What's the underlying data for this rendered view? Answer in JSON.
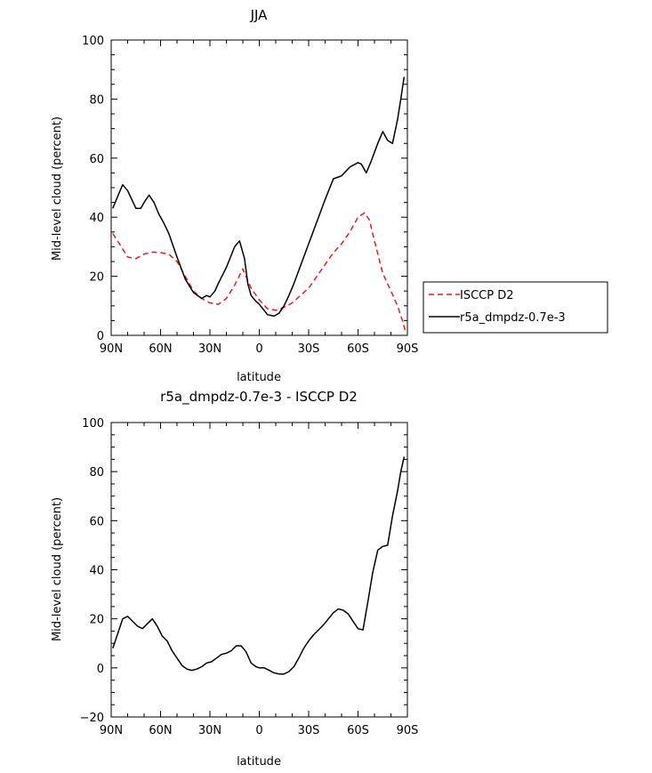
{
  "chart_data": [
    {
      "type": "line",
      "title": "JJA",
      "xlabel": "latitude",
      "ylabel": "Mid-level cloud (percent)",
      "xlim": [
        90,
        -90
      ],
      "ylim": [
        0,
        100
      ],
      "xtick_values": [
        90,
        60,
        30,
        0,
        -30,
        -60,
        -90
      ],
      "xtick_labels": [
        "90N",
        "60N",
        "30N",
        "0",
        "30S",
        "60S",
        "90S"
      ],
      "ytick_values": [
        0,
        20,
        40,
        60,
        80,
        100
      ],
      "ytick_labels": [
        "0",
        "20",
        "40",
        "60",
        "80",
        "100"
      ],
      "legend_position": "right",
      "series": [
        {
          "name": "ISCCP D2",
          "color": "#e8191c",
          "dashed": true,
          "x": [
            89,
            85,
            80,
            75,
            70,
            65,
            60,
            55,
            50,
            45,
            40,
            35,
            30,
            25,
            20,
            15,
            10,
            5,
            0,
            -5,
            -10,
            -15,
            -20,
            -25,
            -30,
            -35,
            -40,
            -45,
            -50,
            -55,
            -60,
            -64,
            -67,
            -70,
            -75,
            -80,
            -84,
            -87,
            -89
          ],
          "values": [
            34.5,
            31,
            26.5,
            26,
            27.5,
            28.2,
            28,
            27.5,
            25,
            20,
            15,
            12.5,
            11,
            10.5,
            12.5,
            17,
            22.5,
            16,
            12,
            9,
            8.5,
            9.5,
            11,
            13.5,
            16,
            20,
            24,
            28,
            31,
            35,
            40,
            41.5,
            39,
            32,
            21,
            15,
            10,
            5,
            1
          ]
        },
        {
          "name": "r5a_dmpdz-0.7e-3",
          "color": "#000000",
          "dashed": false,
          "x": [
            89,
            85,
            83,
            80,
            75,
            72,
            70,
            67,
            64,
            61,
            58,
            55,
            50,
            45,
            40,
            35,
            32,
            30,
            27,
            25,
            20,
            15,
            12,
            9,
            7,
            5,
            2,
            0,
            -5,
            -9,
            -12,
            -15,
            -18,
            -21,
            -24,
            -28,
            -32,
            -36,
            -40,
            -45,
            -50,
            -55,
            -60,
            -62,
            -65,
            -68,
            -70,
            -72,
            -75,
            -78,
            -81,
            -84,
            -86,
            -88
          ],
          "values": [
            43,
            48.5,
            51,
            49,
            43,
            43,
            45,
            47.5,
            45,
            41,
            38,
            34.5,
            26.5,
            19,
            14.5,
            12.5,
            13.5,
            13,
            15,
            17.5,
            23,
            30,
            32,
            26,
            17.5,
            13.5,
            11.5,
            10.5,
            7,
            6.5,
            7.5,
            10,
            13.5,
            17.5,
            22,
            28,
            34,
            40,
            46,
            53,
            54,
            57,
            58.5,
            58,
            55,
            59,
            62,
            65,
            69,
            66,
            65,
            73,
            80,
            87.5
          ]
        }
      ]
    },
    {
      "type": "line",
      "title": "r5a_dmpdz-0.7e-3 - ISCCP D2",
      "xlabel": "latitude",
      "ylabel": "Mid-level cloud (percent)",
      "xlim": [
        90,
        -90
      ],
      "ylim": [
        -20,
        100
      ],
      "xtick_values": [
        90,
        60,
        30,
        0,
        -30,
        -60,
        -90
      ],
      "xtick_labels": [
        "90N",
        "60N",
        "30N",
        "0",
        "30S",
        "60S",
        "90S"
      ],
      "ytick_values": [
        -20,
        0,
        20,
        40,
        60,
        80,
        100
      ],
      "ytick_labels": [
        "−20",
        "0",
        "20",
        "40",
        "60",
        "80",
        "100"
      ],
      "series": [
        {
          "color": "#000000",
          "dashed": false,
          "x": [
            89,
            86,
            83,
            80,
            77,
            74,
            71,
            68,
            65,
            62,
            59,
            56,
            53,
            50,
            47,
            44,
            41,
            38,
            35,
            32,
            29,
            26,
            23,
            20,
            17,
            14,
            11,
            8,
            5,
            2,
            0,
            -3,
            -6,
            -9,
            -12,
            -15,
            -18,
            -21,
            -24,
            -27,
            -30,
            -33,
            -36,
            -39,
            -42,
            -45,
            -48,
            -51,
            -54,
            -57,
            -60,
            -63,
            -66,
            -69,
            -72,
            -75,
            -78,
            -81,
            -84,
            -86,
            -88
          ],
          "values": [
            8,
            14,
            20,
            21,
            19,
            17,
            16,
            18,
            20,
            17,
            13,
            11,
            7,
            4,
            1,
            -0.5,
            -1,
            -0.5,
            0.5,
            2,
            2.5,
            4,
            5.5,
            6,
            7,
            9,
            9,
            6.5,
            2,
            0.5,
            0,
            0,
            -1,
            -2,
            -2.5,
            -2.5,
            -1.5,
            0.5,
            4,
            8,
            11,
            13.5,
            15.5,
            17.5,
            20,
            22.5,
            24,
            23.5,
            22,
            19,
            16,
            15.5,
            27,
            39,
            48,
            49.5,
            50,
            62,
            72,
            80,
            86
          ]
        }
      ]
    }
  ]
}
